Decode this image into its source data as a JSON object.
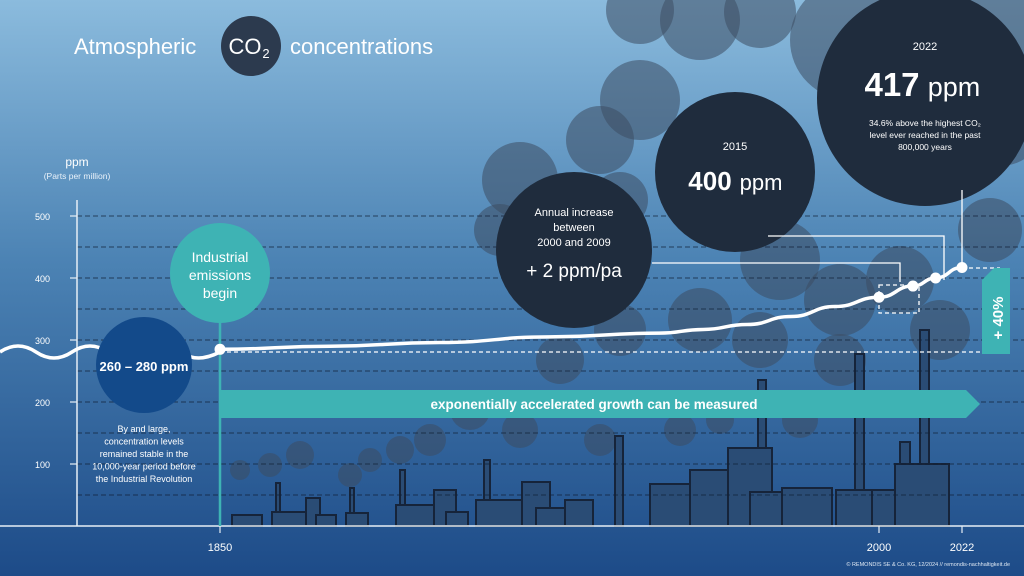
{
  "title": {
    "pre": "Atmospheric",
    "co2_main": "CO",
    "co2_sub": "2",
    "post": "concentrations"
  },
  "axis": {
    "unit": "ppm",
    "unit_note": "(Parts per million)",
    "y_ticks": [
      100,
      200,
      300,
      400,
      500
    ],
    "x_ticks": [
      1850,
      2000,
      2022
    ]
  },
  "callouts": {
    "preindustrial": {
      "value": "260 – 280 ppm",
      "note": [
        "By and large,",
        "concentration levels",
        "remained stable in the",
        "10,000-year period before",
        "the Industrial Revolution"
      ]
    },
    "industrial": {
      "lines": [
        "Industrial",
        "emissions",
        "begin"
      ]
    },
    "annual": {
      "lines": [
        "Annual increase",
        "between",
        "2000 and 2009"
      ],
      "value": "+ 2 ppm/pa"
    },
    "y2015": {
      "year": "2015",
      "value_num": "400",
      "value_unit": "ppm"
    },
    "y2022": {
      "year": "2022",
      "value_num": "417",
      "value_unit": "ppm",
      "note": [
        "34.6% above the highest CO₂",
        "level ever reached in the past",
        "800,000 years"
      ]
    },
    "percent": "+ 40%"
  },
  "banner": "exponentially accelerated growth can be measured",
  "copyright": "© REMONDIS SE & Co. KG, 12/2024 // remondis-nachhaltigkeit.de",
  "colors": {
    "teal": "#3eb3b4",
    "navy": "#123a6b",
    "dark_circle": "#243246",
    "line": "#ffffff"
  },
  "chart_data": {
    "type": "line",
    "title": "Atmospheric CO₂ concentrations",
    "ylabel": "ppm",
    "ylim": [
      0,
      550
    ],
    "grid": true,
    "series": [
      {
        "x": [
          1850,
          1875,
          1900,
          1925,
          1950,
          1960,
          1970,
          1980,
          1990,
          2000,
          2009,
          2015,
          2022
        ],
        "y": [
          285,
          290,
          296,
          305,
          311,
          317,
          325,
          338,
          354,
          369,
          387,
          400,
          417
        ]
      }
    ],
    "markers": [
      {
        "x": 1850,
        "y": 285
      },
      {
        "x": 2000,
        "y": 369
      },
      {
        "x": 2009,
        "y": 387
      },
      {
        "x": 2015,
        "y": 400
      },
      {
        "x": 2022,
        "y": 417
      }
    ]
  }
}
